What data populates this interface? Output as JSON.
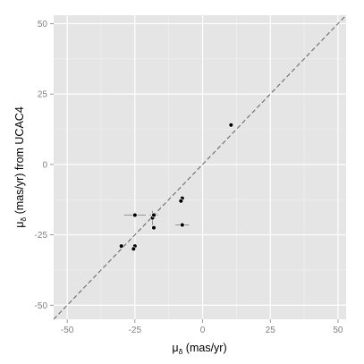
{
  "chart_data": {
    "type": "scatter",
    "title": "",
    "xlabel": "μ",
    "xlabel_sub": "δ",
    "xlabel_rest": " (mas/yr)",
    "ylabel": "μ",
    "ylabel_sub": "δ",
    "ylabel_rest": " (mas/yr) from UCAC4",
    "xlim": [
      -55,
      53
    ],
    "ylim": [
      -55,
      53
    ],
    "x_ticks": [
      -50,
      -25,
      0,
      25,
      50
    ],
    "y_ticks": [
      -50,
      -25,
      0,
      25,
      50
    ],
    "x_tick_labels": [
      "-50",
      "-25",
      "0",
      "25",
      "50"
    ],
    "y_tick_labels": [
      "-50",
      "-25",
      "0",
      "25",
      "50"
    ],
    "grid": true,
    "reference_line": {
      "slope": 1,
      "intercept": 0,
      "style": "dashed"
    },
    "points": [
      {
        "x": 10.5,
        "y": 14.0,
        "xerr": 0,
        "yerr": 0
      },
      {
        "x": -25.0,
        "y": -18.0,
        "xerr": 4.0,
        "yerr": 0
      },
      {
        "x": -18.5,
        "y": -19.0,
        "xerr": 0,
        "yerr": 2.5
      },
      {
        "x": -18.0,
        "y": -18.0,
        "xerr": 1.5,
        "yerr": 0
      },
      {
        "x": -18.0,
        "y": -22.5,
        "xerr": 0,
        "yerr": 0
      },
      {
        "x": -7.5,
        "y": -12.0,
        "xerr": 0,
        "yerr": 0
      },
      {
        "x": -8.0,
        "y": -13.0,
        "xerr": 0,
        "yerr": 0
      },
      {
        "x": -7.5,
        "y": -21.5,
        "xerr": 2.5,
        "yerr": 0
      },
      {
        "x": -30.0,
        "y": -29.0,
        "xerr": 0,
        "yerr": 0
      },
      {
        "x": -25.0,
        "y": -29.0,
        "xerr": 0,
        "yerr": 0
      },
      {
        "x": -25.5,
        "y": -30.0,
        "xerr": 0,
        "yerr": 0
      }
    ],
    "colors": {
      "panel": "#e5e5e5",
      "grid_major": "#ffffff",
      "grid_minor": "#f2f2f2",
      "point": "#000000",
      "reference_line": "#6b6b6b",
      "error_bar": "#7a7a7a"
    }
  }
}
